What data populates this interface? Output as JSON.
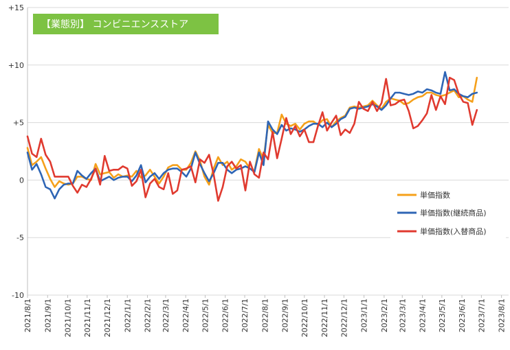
{
  "chart_data": {
    "type": "line",
    "title": "【業態別】 コンビニエンスストア",
    "title_bg_color": "#7dc243",
    "xlabel": "",
    "ylabel": "",
    "ylim": [
      -10,
      15
    ],
    "yticks": [
      -10,
      -5,
      0,
      5,
      10,
      15
    ],
    "ytick_labels": [
      "-10",
      "-5",
      "0",
      "+5",
      "+10",
      "+15"
    ],
    "x_tick_labels": [
      "2021/8/1",
      "2021/9/1",
      "2021/10/1",
      "2021/11/1",
      "2021/12/1",
      "2022/1/1",
      "2022/2/1",
      "2022/3/1",
      "2022/4/1",
      "2022/5/1",
      "2022/6/1",
      "2022/7/1",
      "2022/8/1",
      "2022/9/1",
      "2022/10/1",
      "2022/11/1",
      "2022/12/1",
      "2023/1/1",
      "2023/2/1",
      "2023/3/1",
      "2023/4/1",
      "2023/5/1",
      "2023/6/1",
      "2023/7/1",
      "2023/8/1"
    ],
    "x_tick_positions": [
      0,
      4.43,
      8.86,
      13.14,
      17.57,
      22,
      26.43,
      30.43,
      34.86,
      39.14,
      43.57,
      47.86,
      52.29,
      56.71,
      61,
      65.43,
      69.71,
      74.14,
      78.57,
      82.57,
      87,
      91.29,
      95.71,
      100,
      104.43
    ],
    "x_max": 106,
    "grid": true,
    "legend_position": "bottom-right",
    "series": [
      {
        "name": "単価指数",
        "color": "#f5a01a",
        "values": [
          2.8,
          1.3,
          1.6,
          2.0,
          1.0,
          0.1,
          -0.6,
          -0.1,
          -0.3,
          -0.4,
          -0.3,
          0.3,
          0.3,
          0.1,
          0.0,
          1.4,
          0.5,
          0.6,
          0.7,
          0.2,
          0.5,
          0.3,
          0.4,
          0.3,
          0.8,
          0.2,
          0.4,
          0.9,
          0.3,
          -0.3,
          0.3,
          1.1,
          1.3,
          1.3,
          0.9,
          0.9,
          1.5,
          2.5,
          1.7,
          0.3,
          -0.4,
          1.0,
          2.0,
          1.3,
          1.6,
          0.9,
          1.2,
          1.8,
          1.6,
          1.0,
          0.8,
          2.7,
          1.8,
          4.8,
          4.1,
          4.1,
          5.7,
          4.9,
          4.7,
          4.9,
          4.4,
          4.9,
          5.1,
          5.1,
          4.8,
          5.2,
          5.3,
          4.6,
          5.1,
          5.4,
          5.6,
          6.3,
          6.4,
          6.3,
          6.4,
          6.5,
          6.9,
          6.5,
          6.2,
          6.8,
          7.1,
          7.0,
          6.9,
          6.6,
          6.7,
          7.0,
          7.2,
          7.3,
          7.6,
          7.6,
          7.4,
          7.3,
          7.4,
          7.6,
          7.8,
          7.2,
          7.3,
          7.0,
          6.8,
          8.9
        ]
      },
      {
        "name": "単価指数(継続商品)",
        "color": "#2e65b5",
        "values": [
          2.4,
          0.9,
          1.4,
          0.5,
          -0.6,
          -0.8,
          -1.6,
          -0.8,
          -0.4,
          -0.3,
          -0.3,
          0.8,
          0.4,
          0.1,
          0.6,
          1.0,
          -0.1,
          0.1,
          0.3,
          0.0,
          0.2,
          0.3,
          0.3,
          -0.1,
          0.4,
          1.3,
          -0.2,
          0.3,
          0.6,
          0.1,
          0.6,
          0.9,
          1.0,
          1.0,
          0.7,
          0.3,
          1.0,
          2.4,
          1.4,
          0.6,
          -0.1,
          0.6,
          1.5,
          1.5,
          0.9,
          0.6,
          0.9,
          1.0,
          1.2,
          1.0,
          0.7,
          2.4,
          1.3,
          5.1,
          4.4,
          4.0,
          4.8,
          4.3,
          4.5,
          4.4,
          4.2,
          4.4,
          4.7,
          4.9,
          4.9,
          4.6,
          5.0,
          4.6,
          4.9,
          5.3,
          5.5,
          6.2,
          6.3,
          6.2,
          6.3,
          6.4,
          6.6,
          6.4,
          6.1,
          6.5,
          7.1,
          7.6,
          7.6,
          7.5,
          7.4,
          7.5,
          7.7,
          7.6,
          7.9,
          7.8,
          7.6,
          7.5,
          9.4,
          7.8,
          7.9,
          7.5,
          7.3,
          7.2,
          7.5,
          7.6
        ]
      },
      {
        "name": "単価指数(入替商品)",
        "color": "#e03a2f",
        "values": [
          3.8,
          2.3,
          2.0,
          3.6,
          2.2,
          1.6,
          0.3,
          0.3,
          0.3,
          0.3,
          -0.5,
          -1.1,
          -0.4,
          -0.6,
          0.1,
          1.0,
          -0.4,
          2.1,
          0.8,
          0.9,
          0.9,
          1.2,
          1.0,
          -0.5,
          -0.1,
          0.9,
          -1.5,
          -0.3,
          0.1,
          -0.6,
          -0.8,
          0.6,
          -1.2,
          -0.9,
          0.9,
          1.0,
          1.2,
          -0.2,
          1.8,
          1.5,
          2.2,
          0.5,
          -1.8,
          -0.6,
          1.2,
          1.6,
          1.0,
          1.3,
          -0.9,
          1.6,
          0.5,
          0.2,
          2.4,
          1.8,
          4.2,
          1.9,
          3.6,
          5.4,
          4.0,
          4.7,
          3.8,
          4.4,
          3.3,
          3.3,
          4.7,
          5.9,
          4.3,
          5.0,
          5.6,
          3.9,
          4.4,
          4.1,
          4.9,
          6.8,
          6.2,
          6.0,
          6.8,
          6.0,
          6.7,
          8.8,
          6.5,
          6.6,
          6.9,
          7.0,
          6.0,
          4.5,
          4.7,
          5.2,
          5.8,
          7.4,
          6.1,
          7.3,
          6.6,
          8.9,
          8.7,
          7.5,
          6.8,
          6.7,
          4.8,
          6.1
        ]
      }
    ]
  }
}
